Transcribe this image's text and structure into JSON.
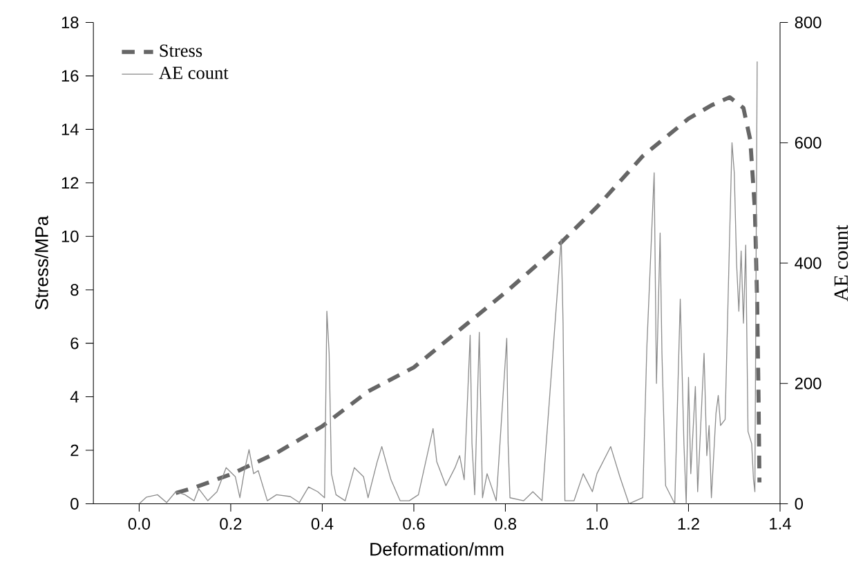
{
  "chart_data": {
    "type": "line",
    "xlabel": "Deformation/mm",
    "ylabel": "Stress/MPa",
    "y2label": "AE count",
    "xlim": [
      -0.1,
      1.4
    ],
    "xticks": [
      {
        "value": 0,
        "label": "0.0"
      },
      0.2,
      0.4,
      0.6,
      0.8,
      {
        "value": 1,
        "label": "1.0"
      },
      1.2,
      1.4
    ],
    "ylim": [
      0,
      18
    ],
    "yticks": [
      0,
      2,
      4,
      6,
      8,
      10,
      12,
      14,
      16,
      18
    ],
    "y2lim": [
      0,
      800
    ],
    "y2ticks": [
      0,
      200,
      400,
      600,
      800
    ],
    "legend": "top left",
    "grid": false,
    "series": [
      {
        "name": "Stress",
        "color": "#666666",
        "line_style": "dashed",
        "x": [
          0.08,
          0.12,
          0.2,
          0.3,
          0.4,
          0.5,
          0.6,
          0.7,
          0.8,
          0.9,
          1.0,
          1.1,
          1.2,
          1.25,
          1.29,
          1.32,
          1.335,
          1.345,
          1.35,
          1.353,
          1.355
        ],
        "values": [
          0.4,
          0.6,
          1.1,
          1.9,
          2.9,
          4.2,
          5.1,
          6.5,
          7.9,
          9.4,
          11.1,
          13.0,
          14.4,
          14.9,
          15.2,
          14.8,
          13.6,
          11.0,
          7.5,
          4.0,
          0.8
        ]
      },
      {
        "name": "AE count",
        "color": "#8c8c8c",
        "line_style": "solid",
        "axis": "y2",
        "x": [
          0.0,
          0.016,
          0.04,
          0.06,
          0.08,
          0.1,
          0.12,
          0.13,
          0.15,
          0.17,
          0.19,
          0.21,
          0.22,
          0.23,
          0.24,
          0.25,
          0.26,
          0.28,
          0.3,
          0.33,
          0.35,
          0.37,
          0.39,
          0.405,
          0.41,
          0.415,
          0.42,
          0.43,
          0.45,
          0.47,
          0.49,
          0.5,
          0.52,
          0.53,
          0.55,
          0.57,
          0.59,
          0.61,
          0.642,
          0.65,
          0.67,
          0.69,
          0.7,
          0.71,
          0.723,
          0.727,
          0.733,
          0.743,
          0.75,
          0.76,
          0.78,
          0.803,
          0.806,
          0.81,
          0.84,
          0.86,
          0.88,
          0.922,
          0.926,
          0.93,
          0.95,
          0.97,
          0.99,
          1.0,
          1.03,
          1.05,
          1.07,
          1.1,
          1.109,
          1.125,
          1.13,
          1.138,
          1.142,
          1.15,
          1.17,
          1.182,
          1.19,
          1.195,
          1.2,
          1.205,
          1.215,
          1.22,
          1.234,
          1.24,
          1.245,
          1.25,
          1.26,
          1.265,
          1.27,
          1.28,
          1.29,
          1.295,
          1.3,
          1.305,
          1.31,
          1.315,
          1.32,
          1.325,
          1.33,
          1.338,
          1.342,
          1.345,
          1.35
        ],
        "values": [
          0,
          11,
          15,
          2,
          20,
          15,
          5,
          25,
          5,
          20,
          60,
          45,
          10,
          55,
          90,
          50,
          55,
          5,
          15,
          12,
          2,
          28,
          20,
          10,
          320,
          250,
          50,
          15,
          5,
          60,
          45,
          10,
          70,
          95,
          40,
          5,
          5,
          15,
          125,
          70,
          30,
          60,
          80,
          40,
          280,
          100,
          15,
          285,
          10,
          50,
          5,
          275,
          100,
          10,
          5,
          20,
          5,
          440,
          300,
          5,
          5,
          50,
          20,
          50,
          95,
          45,
          0,
          10,
          260,
          550,
          200,
          450,
          250,
          30,
          0,
          340,
          100,
          0,
          210,
          50,
          195,
          20,
          250,
          80,
          130,
          10,
          150,
          180,
          130,
          140,
          450,
          600,
          550,
          400,
          320,
          420,
          300,
          430,
          120,
          100,
          40,
          20,
          735
        ]
      }
    ]
  }
}
